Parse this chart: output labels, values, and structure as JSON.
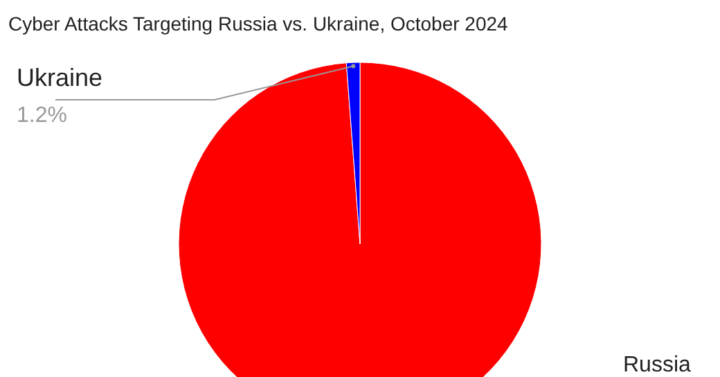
{
  "chart_data": {
    "type": "pie",
    "title": "Cyber Attacks Targeting Russia vs. Ukraine, October 2024",
    "categories": [
      "Russia",
      "Ukraine"
    ],
    "values": [
      98.8,
      1.2
    ],
    "colors": [
      "#ff0000",
      "#0000ff"
    ],
    "value_labels": [
      null,
      "1.2%"
    ]
  }
}
